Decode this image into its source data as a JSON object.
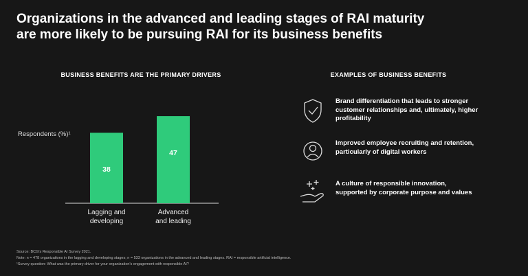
{
  "chart_data": {
    "type": "bar",
    "title": "Organizations in the advanced and leading stages of RAI maturity are more likely to be pursuing RAI for its business benefits",
    "subtitle": "BUSINESS BENEFITS ARE THE PRIMARY DRIVERS",
    "y_label": "Respondents (%)¹",
    "categories": [
      "Lagging and developing",
      "Advanced and leading"
    ],
    "values": [
      38,
      47
    ],
    "color": "#2fcb7b"
  },
  "examples": {
    "title": "EXAMPLES OF BUSINESS BENEFITS",
    "items": [
      "Brand differentiation that leads to stronger customer relationships and, ultimately, higher profitability",
      "Improved employee recruiting and retention, particularly of digital workers",
      "A culture of responsible innovation, supported by corporate purpose and values"
    ]
  },
  "footnotes": [
    "Source: BCG's Responsible AI Survey 2021.",
    "Note: n = 478 organizations in the lagging and developing stages; n = 533 organizations in the advanced and leading stages. RAI = responsible artificial intelligence.",
    "¹Survey question: What was the primary driver for your organization's engagement with responsible AI?"
  ]
}
